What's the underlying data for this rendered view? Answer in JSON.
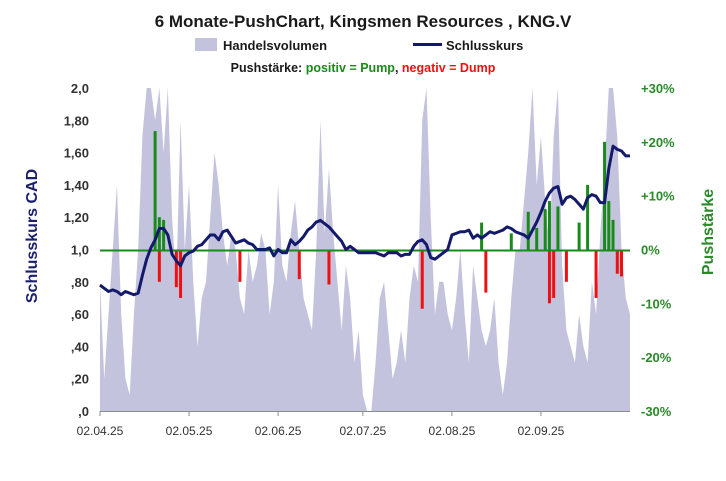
{
  "chart_data": {
    "type": "combo",
    "title": "6 Monate-PushChart,  Kingsmen  Resources , KNG.V",
    "legend": {
      "volume_label": "Handelsvolumen",
      "close_label": "Schlusskurs",
      "position": "top"
    },
    "pushstaerke_line": {
      "prefix": "Pushstärke: ",
      "positive": "positiv = Pump",
      "separator": ", ",
      "negative": "negativ = Dump"
    },
    "ylabel_left": "Schlusskurs CAD",
    "ylabel_right": "Pushstärke",
    "ylim_left": [
      0,
      2.0
    ],
    "ylim_right": [
      -30,
      30
    ],
    "yticks_left": [
      ",0",
      ",20",
      ",40",
      ",60",
      ",80",
      "1,0",
      "1,20",
      "1,40",
      "1,60",
      "1,80",
      "2,0"
    ],
    "yticks_right": [
      "-30%",
      "-20%",
      "-10%",
      "0%",
      "+10%",
      "+20%",
      "+30%"
    ],
    "x_ticks": [
      "02.04.25",
      "02.05.25",
      "02.06.25",
      "02.07.25",
      "02.08.25",
      "02.09.25"
    ],
    "x_tick_index": [
      0,
      21,
      42,
      62,
      83,
      104
    ],
    "n_days": 126,
    "volume_fraction": [
      0.4,
      0.1,
      0.3,
      0.5,
      0.7,
      0.3,
      0.1,
      0.05,
      0.3,
      0.5,
      0.85,
      1.0,
      1.0,
      0.9,
      1.0,
      0.8,
      1.0,
      0.6,
      0.4,
      0.9,
      0.5,
      0.7,
      0.4,
      0.2,
      0.35,
      0.4,
      0.6,
      0.8,
      0.7,
      0.55,
      0.45,
      0.55,
      0.5,
      0.35,
      0.3,
      0.5,
      0.4,
      0.45,
      0.55,
      0.5,
      0.3,
      0.4,
      0.7,
      0.45,
      0.4,
      0.55,
      0.65,
      0.5,
      0.35,
      0.3,
      0.25,
      0.5,
      0.9,
      0.55,
      0.75,
      0.55,
      0.4,
      0.25,
      0.45,
      0.35,
      0.15,
      0.25,
      0.05,
      0.0,
      0.0,
      0.15,
      0.35,
      0.4,
      0.25,
      0.1,
      0.15,
      0.25,
      0.15,
      0.35,
      0.45,
      0.4,
      0.9,
      1.0,
      0.6,
      0.3,
      0.4,
      0.4,
      0.3,
      0.25,
      0.35,
      0.5,
      0.3,
      0.15,
      0.45,
      0.35,
      0.25,
      0.2,
      0.25,
      0.35,
      0.15,
      0.05,
      0.15,
      0.35,
      0.5,
      0.5,
      0.65,
      0.8,
      1.0,
      0.7,
      0.85,
      0.65,
      0.5,
      0.85,
      1.0,
      0.45,
      0.25,
      0.2,
      0.15,
      0.3,
      0.2,
      0.15,
      0.4,
      0.3,
      0.55,
      0.75,
      1.0,
      1.0,
      0.85,
      0.5,
      0.35,
      0.3
    ],
    "close": [
      0.78,
      0.76,
      0.74,
      0.75,
      0.74,
      0.72,
      0.74,
      0.73,
      0.72,
      0.73,
      0.84,
      0.94,
      1.01,
      1.06,
      1.13,
      1.13,
      1.09,
      0.97,
      0.93,
      0.9,
      0.96,
      0.98,
      0.99,
      1.02,
      1.03,
      1.06,
      1.09,
      1.09,
      1.06,
      1.11,
      1.12,
      1.08,
      1.04,
      1.05,
      1.06,
      1.04,
      1.03,
      1.0,
      1.0,
      1.0,
      1.01,
      0.96,
      1.0,
      0.98,
      0.98,
      1.06,
      1.03,
      1.05,
      1.08,
      1.12,
      1.14,
      1.17,
      1.18,
      1.16,
      1.14,
      1.11,
      1.08,
      1.05,
      1.0,
      1.02,
      1.0,
      0.98,
      0.98,
      0.98,
      0.98,
      0.98,
      0.97,
      0.96,
      0.98,
      0.98,
      0.98,
      0.96,
      0.97,
      0.97,
      1.02,
      1.05,
      1.06,
      1.03,
      0.95,
      0.94,
      0.96,
      0.98,
      1.0,
      1.09,
      1.1,
      1.11,
      1.11,
      1.12,
      1.07,
      1.09,
      1.07,
      1.09,
      1.11,
      1.1,
      1.11,
      1.12,
      1.14,
      1.13,
      1.11,
      1.1,
      1.09,
      1.07,
      1.12,
      1.17,
      1.23,
      1.3,
      1.35,
      1.38,
      1.39,
      1.28,
      1.32,
      1.33,
      1.31,
      1.28,
      1.25,
      1.32,
      1.34,
      1.33,
      1.29,
      1.29,
      1.5,
      1.64,
      1.62,
      1.61,
      1.58,
      1.58
    ],
    "push": [
      {
        "i": 13,
        "v": 22.0
      },
      {
        "i": 14,
        "v": 6.0
      },
      {
        "i": 15,
        "v": 5.5
      },
      {
        "i": 14,
        "v": -6.0
      },
      {
        "i": 18,
        "v": -7.0
      },
      {
        "i": 19,
        "v": -9.0
      },
      {
        "i": 33,
        "v": -6.0
      },
      {
        "i": 47,
        "v": -5.5
      },
      {
        "i": 54,
        "v": -6.5
      },
      {
        "i": 76,
        "v": -11.0
      },
      {
        "i": 90,
        "v": 5.0
      },
      {
        "i": 91,
        "v": -8.0
      },
      {
        "i": 97,
        "v": 3.0
      },
      {
        "i": 101,
        "v": 7.0
      },
      {
        "i": 103,
        "v": 4.0
      },
      {
        "i": 105,
        "v": 7.5
      },
      {
        "i": 106,
        "v": -10.0
      },
      {
        "i": 106,
        "v": 9.0
      },
      {
        "i": 107,
        "v": -9.0
      },
      {
        "i": 108,
        "v": 8.0
      },
      {
        "i": 110,
        "v": -6.0
      },
      {
        "i": 113,
        "v": 5.0
      },
      {
        "i": 115,
        "v": 12.0
      },
      {
        "i": 117,
        "v": -9.0
      },
      {
        "i": 119,
        "v": 20.0
      },
      {
        "i": 120,
        "v": 9.0
      },
      {
        "i": 121,
        "v": 5.5
      },
      {
        "i": 122,
        "v": -4.5
      },
      {
        "i": 123,
        "v": -5.0
      }
    ],
    "colors": {
      "volume": "#c4c3de",
      "close": "#141a6b",
      "pump": "#1a8a1a",
      "dump": "#ee1111",
      "zero_line": "#1a8a1a",
      "push_positive_text": "#1a8a1a",
      "push_negative_text": "#ee1111",
      "text_dark": "#1a1a1a"
    }
  }
}
